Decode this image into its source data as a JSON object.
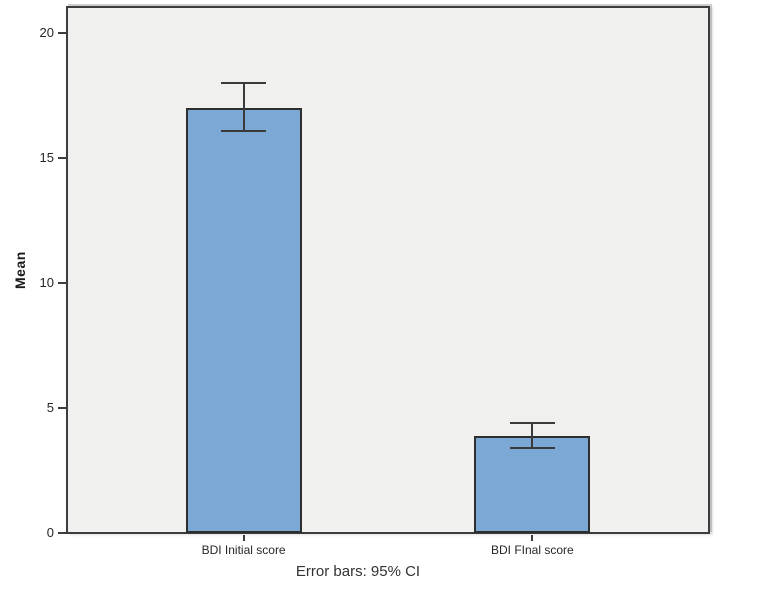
{
  "chart_data": {
    "type": "bar",
    "title": "",
    "categories": [
      "BDI Initial score",
      "BDI FInal score"
    ],
    "values": [
      17.0,
      3.9
    ],
    "error_bars": {
      "label": "95% CI",
      "upper": [
        18.0,
        4.4
      ],
      "lower": [
        16.1,
        3.4
      ]
    },
    "xlabel": "",
    "ylabel": "Mean",
    "yticks": [
      0,
      5,
      10,
      15,
      20
    ],
    "ylim": [
      0,
      21
    ],
    "caption": "Error bars: 95% CI",
    "grid": false,
    "legend": false,
    "colors": {
      "bar_fill": "#7BA8D5",
      "bar_border": "#2E2E2E",
      "error_bar": "#3A3A3A",
      "plot_background": "#F0F0EE",
      "frame": "#3D3D3D",
      "text": "#262626"
    }
  }
}
